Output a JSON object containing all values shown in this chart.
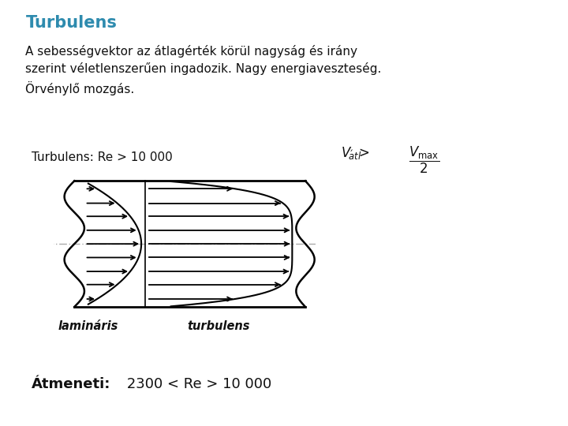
{
  "title": "Turbulens",
  "title_color": "#2E8BAE",
  "body_text": "A sebességvektor az átlagérték körül nagyság és irány\nszerint véletlenszerűen ingadozik. Nagy energiaveszteség.\nÖrvénylő mozgás.",
  "turbulens_re": "Turbulens: Re > 10 000",
  "label_laminar": "lamináris",
  "label_turbulens": "turbulens",
  "atmeneti_bold": "Átmeneti:",
  "atmeneti_value": " 2300 < Re > 10 000",
  "bg_color": "#ffffff",
  "text_color": "#111111"
}
